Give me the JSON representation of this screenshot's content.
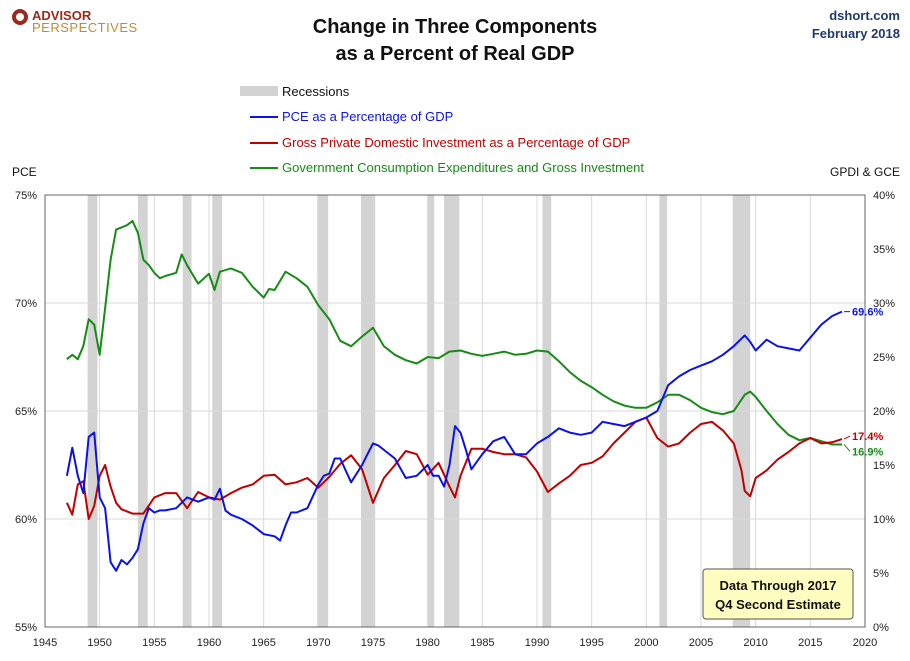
{
  "header": {
    "logo_line1": "ADVISOR",
    "logo_line2": "PERSPECTIVES",
    "title_line1": "Change in Three Components",
    "title_line2": "as a Percent of Real GDP",
    "source": "dshort.com",
    "date": "February 2018"
  },
  "note": {
    "line1": "Data Through 2017",
    "line2": "Q4 Second Estimate"
  },
  "colors": {
    "pce": "#0a12e6",
    "gpdi": "#c00000",
    "gce": "#168c16",
    "recession": "#d3d3d3",
    "note_bg": "#fffdc0"
  },
  "chart_data": {
    "type": "line",
    "title": "Change in Three Components as a Percent of Real GDP",
    "x_ticks": [
      "1945",
      "1950",
      "1955",
      "1960",
      "1965",
      "1970",
      "1975",
      "1980",
      "1985",
      "1990",
      "1995",
      "2000",
      "2005",
      "2010",
      "2015",
      "2020"
    ],
    "xlim": [
      1945,
      2020
    ],
    "left_axis": {
      "label": "PCE",
      "ylim": [
        55,
        75
      ],
      "ticks": [
        "55%",
        "60%",
        "65%",
        "70%",
        "75%"
      ]
    },
    "right_axis": {
      "label": "GPDI & GCE",
      "ylim": [
        0,
        40
      ],
      "ticks": [
        "0%",
        "5%",
        "10%",
        "15%",
        "20%",
        "25%",
        "30%",
        "35%",
        "40%"
      ]
    },
    "grid": true,
    "legend_position": "top-left",
    "recessions_label": "Recessions",
    "recessions": [
      [
        1948.9,
        1949.8
      ],
      [
        1953.5,
        1954.4
      ],
      [
        1957.6,
        1958.4
      ],
      [
        1960.3,
        1961.2
      ],
      [
        1969.9,
        1970.9
      ],
      [
        1973.9,
        1975.2
      ],
      [
        1980.0,
        1980.6
      ],
      [
        1981.5,
        1982.9
      ],
      [
        1990.5,
        1991.3
      ],
      [
        2001.2,
        2001.9
      ],
      [
        2007.9,
        2009.5
      ]
    ],
    "series": [
      {
        "name": "PCE as a Percentage of GDP",
        "axis": "left",
        "end_label": "69.6%",
        "x": [
          1947,
          1947.5,
          1948,
          1948.5,
          1949,
          1949.5,
          1950,
          1950.5,
          1951,
          1951.5,
          1952,
          1952.5,
          1953,
          1953.5,
          1954,
          1954.5,
          1955,
          1955.5,
          1956,
          1957,
          1958,
          1959,
          1960,
          1960.5,
          1961,
          1961.5,
          1962,
          1963,
          1964,
          1965,
          1966,
          1966.5,
          1967,
          1967.5,
          1968,
          1969,
          1970,
          1970.5,
          1971,
          1971.5,
          1972,
          1973,
          1974,
          1974.5,
          1975,
          1975.5,
          1976,
          1977,
          1978,
          1979,
          1980,
          1980.5,
          1981,
          1981.5,
          1982,
          1982.5,
          1983,
          1983.5,
          1984,
          1985,
          1986,
          1987,
          1988,
          1989,
          1990,
          1991,
          1992,
          1993,
          1994,
          1995,
          1996,
          1997,
          1998,
          1999,
          2000,
          2001,
          2002,
          2003,
          2004,
          2005,
          2006,
          2007,
          2008,
          2009,
          2009.5,
          2010,
          2011,
          2012,
          2013,
          2014,
          2015,
          2016,
          2017,
          2017.9
        ],
        "values": [
          62.0,
          63.3,
          62.0,
          61.2,
          63.8,
          64.0,
          61.0,
          60.5,
          58.0,
          57.6,
          58.1,
          57.9,
          58.2,
          58.6,
          59.8,
          60.5,
          60.3,
          60.4,
          60.4,
          60.5,
          61.0,
          60.8,
          61.0,
          60.9,
          61.4,
          60.4,
          60.2,
          60.0,
          59.7,
          59.3,
          59.2,
          59.0,
          59.7,
          60.3,
          60.3,
          60.5,
          61.6,
          62.0,
          62.1,
          62.8,
          62.8,
          61.7,
          62.5,
          63.0,
          63.5,
          63.4,
          63.2,
          62.8,
          61.9,
          62.0,
          62.5,
          62.0,
          62.0,
          61.5,
          62.5,
          64.3,
          64.0,
          63.2,
          62.3,
          63.0,
          63.6,
          63.8,
          63.0,
          63.0,
          63.5,
          63.8,
          64.2,
          64.0,
          63.9,
          64.0,
          64.5,
          64.4,
          64.3,
          64.5,
          64.7,
          65.0,
          66.2,
          66.6,
          66.9,
          67.1,
          67.3,
          67.6,
          68.0,
          68.5,
          68.2,
          67.8,
          68.3,
          68.0,
          67.9,
          67.8,
          68.4,
          69.0,
          69.4,
          69.6
        ]
      },
      {
        "name": "Gross Private Domestic Investment as a Percentage of GDP",
        "axis": "right",
        "end_label": "17.4%",
        "x": [
          1947,
          1947.5,
          1948,
          1948.5,
          1949,
          1949.5,
          1950,
          1950.5,
          1951,
          1951.5,
          1952,
          1953,
          1954,
          1955,
          1956,
          1957,
          1958,
          1959,
          1960,
          1961,
          1962,
          1963,
          1964,
          1965,
          1966,
          1967,
          1968,
          1969,
          1970,
          1971,
          1972,
          1973,
          1974,
          1975,
          1976,
          1977,
          1978,
          1979,
          1980,
          1981,
          1982,
          1982.5,
          1983,
          1984,
          1985,
          1986,
          1987,
          1988,
          1989,
          1990,
          1991,
          1992,
          1993,
          1994,
          1995,
          1996,
          1997,
          1998,
          1999,
          2000,
          2001,
          2002,
          2003,
          2004,
          2005,
          2006,
          2007,
          2008,
          2008.7,
          2009,
          2009.5,
          2010,
          2011,
          2012,
          2013,
          2014,
          2015,
          2016,
          2017,
          2017.9
        ],
        "values": [
          11.5,
          10.4,
          13.2,
          13.5,
          10.0,
          11.2,
          14.0,
          15.0,
          13.0,
          11.5,
          10.9,
          10.5,
          10.5,
          12.0,
          12.4,
          12.4,
          11.0,
          12.5,
          12.0,
          11.8,
          12.4,
          12.9,
          13.2,
          14.0,
          14.1,
          13.2,
          13.4,
          13.8,
          12.9,
          13.9,
          15.1,
          15.9,
          14.6,
          11.5,
          13.8,
          15.0,
          16.3,
          16.0,
          14.1,
          15.2,
          13.0,
          12.0,
          14.0,
          16.5,
          16.5,
          16.2,
          16.0,
          16.0,
          15.7,
          14.4,
          12.5,
          13.3,
          14.0,
          15.0,
          15.2,
          15.8,
          17.0,
          18.0,
          19.0,
          19.4,
          17.5,
          16.7,
          17.0,
          18.0,
          18.8,
          19.0,
          18.2,
          17.0,
          14.5,
          12.6,
          12.1,
          13.8,
          14.5,
          15.5,
          16.2,
          17.0,
          17.5,
          17.0,
          17.1,
          17.4
        ]
      },
      {
        "name": "Government Consumption Expenditures and Gross Investment",
        "axis": "right",
        "end_label": "16.9%",
        "x": [
          1947,
          1947.5,
          1948,
          1948.5,
          1949,
          1949.5,
          1950,
          1950.5,
          1951,
          1951.5,
          1952,
          1952.5,
          1953,
          1953.5,
          1954,
          1954.5,
          1955,
          1955.5,
          1956,
          1957,
          1957.5,
          1958,
          1959,
          1960,
          1960.5,
          1961,
          1962,
          1963,
          1964,
          1965,
          1965.5,
          1966,
          1967,
          1968,
          1969,
          1970,
          1971,
          1972,
          1973,
          1974,
          1975,
          1976,
          1977,
          1978,
          1979,
          1980,
          1981,
          1982,
          1983,
          1984,
          1985,
          1986,
          1987,
          1988,
          1989,
          1990,
          1991,
          1992,
          1993,
          1994,
          1995,
          1996,
          1997,
          1998,
          1999,
          2000,
          2001,
          2002,
          2003,
          2004,
          2005,
          2006,
          2007,
          2008,
          2009,
          2009.5,
          2010,
          2011,
          2012,
          2013,
          2014,
          2015,
          2016,
          2017,
          2017.9
        ],
        "values": [
          24.8,
          25.2,
          24.8,
          26.0,
          28.5,
          28.0,
          25.2,
          29.5,
          34.0,
          36.8,
          37.0,
          37.2,
          37.6,
          36.5,
          34.0,
          33.5,
          32.8,
          32.3,
          32.5,
          32.8,
          34.5,
          33.5,
          31.8,
          32.7,
          31.2,
          32.9,
          33.2,
          32.8,
          31.5,
          30.5,
          31.3,
          31.2,
          32.9,
          32.3,
          31.5,
          29.8,
          28.5,
          26.5,
          26.0,
          26.9,
          27.7,
          26.0,
          25.2,
          24.7,
          24.4,
          25.0,
          24.9,
          25.5,
          25.6,
          25.3,
          25.1,
          25.3,
          25.5,
          25.2,
          25.3,
          25.6,
          25.5,
          24.6,
          23.6,
          22.8,
          22.2,
          21.5,
          20.9,
          20.5,
          20.3,
          20.3,
          20.8,
          21.5,
          21.5,
          21.0,
          20.3,
          19.9,
          19.7,
          20.0,
          21.5,
          21.8,
          21.3,
          20.0,
          18.8,
          17.8,
          17.3,
          17.5,
          17.2,
          16.9,
          16.9
        ]
      }
    ]
  }
}
